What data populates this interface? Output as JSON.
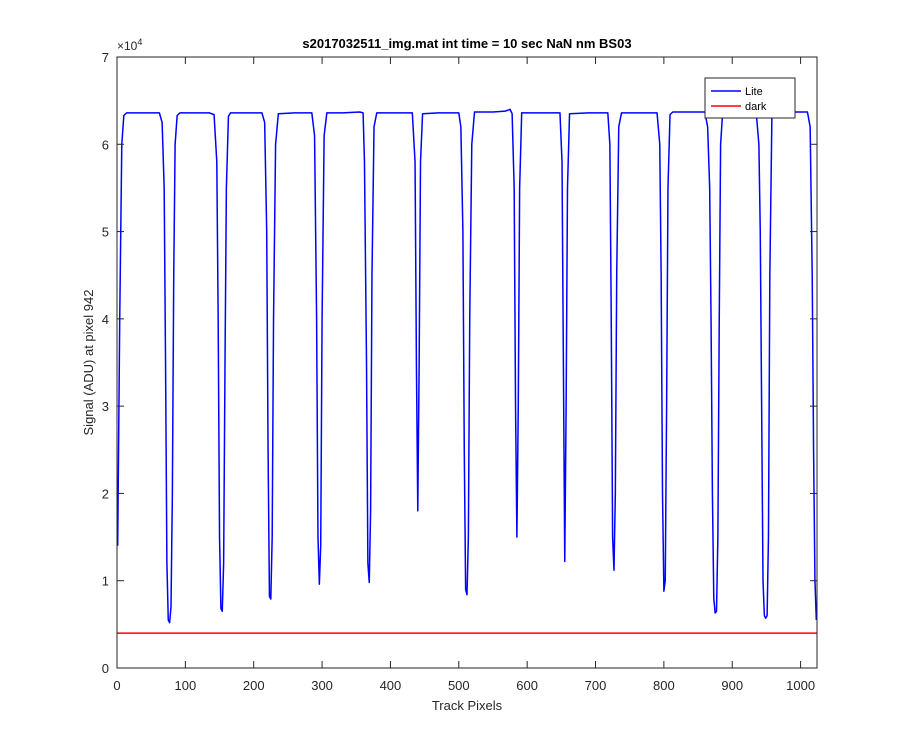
{
  "chart_data": {
    "type": "line",
    "title": "s2017032511_img.mat int time = 10 sec  NaN nm BS03",
    "xlabel": "Track Pixels",
    "ylabel": "Signal (ADU) at pixel 942",
    "xlim": [
      0,
      1024
    ],
    "ylim": [
      0,
      70000
    ],
    "y_exponent_label": "×10",
    "y_exponent_power": "4",
    "x_ticks": [
      0,
      100,
      200,
      300,
      400,
      500,
      600,
      700,
      800,
      900,
      1000
    ],
    "x_tick_labels": [
      "0",
      "100",
      "200",
      "300",
      "400",
      "500",
      "600",
      "700",
      "800",
      "900",
      "1000"
    ],
    "y_ticks": [
      0,
      10000,
      20000,
      30000,
      40000,
      50000,
      60000,
      70000
    ],
    "y_tick_labels": [
      "0",
      "1",
      "2",
      "3",
      "4",
      "5",
      "6",
      "7"
    ],
    "grid": false,
    "legend_position": "top-right",
    "series": [
      {
        "name": "Lite",
        "color": "#0000ff",
        "points": [
          [
            1,
            14000
          ],
          [
            4,
            40000
          ],
          [
            7,
            60000
          ],
          [
            10,
            63300
          ],
          [
            14,
            63600
          ],
          [
            30,
            63600
          ],
          [
            50,
            63600
          ],
          [
            62,
            63600
          ],
          [
            66,
            62500
          ],
          [
            69,
            55000
          ],
          [
            71,
            35000
          ],
          [
            73,
            12000
          ],
          [
            75,
            5500
          ],
          [
            77,
            5200
          ],
          [
            79,
            7000
          ],
          [
            81,
            20000
          ],
          [
            83,
            45000
          ],
          [
            85,
            60000
          ],
          [
            88,
            63300
          ],
          [
            92,
            63600
          ],
          [
            110,
            63600
          ],
          [
            135,
            63600
          ],
          [
            142,
            63400
          ],
          [
            146,
            58000
          ],
          [
            148,
            40000
          ],
          [
            150,
            15000
          ],
          [
            152,
            6800
          ],
          [
            154,
            6500
          ],
          [
            156,
            12000
          ],
          [
            158,
            35000
          ],
          [
            160,
            55000
          ],
          [
            163,
            63200
          ],
          [
            166,
            63600
          ],
          [
            190,
            63600
          ],
          [
            212,
            63600
          ],
          [
            216,
            62500
          ],
          [
            219,
            50000
          ],
          [
            221,
            25000
          ],
          [
            223,
            8200
          ],
          [
            225,
            7900
          ],
          [
            227,
            15000
          ],
          [
            229,
            40000
          ],
          [
            232,
            60000
          ],
          [
            236,
            63500
          ],
          [
            260,
            63600
          ],
          [
            285,
            63600
          ],
          [
            289,
            61000
          ],
          [
            292,
            40000
          ],
          [
            294,
            15000
          ],
          [
            296,
            9600
          ],
          [
            298,
            14000
          ],
          [
            300,
            40000
          ],
          [
            303,
            61000
          ],
          [
            307,
            63600
          ],
          [
            330,
            63600
          ],
          [
            355,
            63700
          ],
          [
            360,
            63600
          ],
          [
            362,
            58000
          ],
          [
            365,
            35000
          ],
          [
            367,
            12000
          ],
          [
            369,
            9800
          ],
          [
            371,
            18000
          ],
          [
            373,
            45000
          ],
          [
            376,
            62000
          ],
          [
            380,
            63600
          ],
          [
            410,
            63600
          ],
          [
            432,
            63600
          ],
          [
            436,
            58000
          ],
          [
            438,
            35000
          ],
          [
            440,
            18000
          ],
          [
            442,
            35000
          ],
          [
            444,
            58000
          ],
          [
            447,
            63500
          ],
          [
            470,
            63600
          ],
          [
            500,
            63600
          ],
          [
            503,
            62000
          ],
          [
            506,
            50000
          ],
          [
            508,
            25000
          ],
          [
            510,
            9000
          ],
          [
            512,
            8400
          ],
          [
            514,
            15000
          ],
          [
            516,
            40000
          ],
          [
            519,
            60000
          ],
          [
            523,
            63700
          ],
          [
            550,
            63700
          ],
          [
            568,
            63800
          ],
          [
            575,
            64000
          ],
          [
            578,
            63500
          ],
          [
            581,
            55000
          ],
          [
            583,
            30000
          ],
          [
            585,
            15000
          ],
          [
            587,
            30000
          ],
          [
            589,
            55000
          ],
          [
            592,
            63600
          ],
          [
            620,
            63600
          ],
          [
            648,
            63600
          ],
          [
            651,
            58000
          ],
          [
            653,
            35000
          ],
          [
            655,
            12200
          ],
          [
            657,
            30000
          ],
          [
            659,
            55000
          ],
          [
            662,
            63500
          ],
          [
            690,
            63600
          ],
          [
            718,
            63600
          ],
          [
            721,
            60000
          ],
          [
            723,
            40000
          ],
          [
            725,
            15000
          ],
          [
            727,
            11200
          ],
          [
            729,
            20000
          ],
          [
            731,
            45000
          ],
          [
            734,
            62000
          ],
          [
            738,
            63600
          ],
          [
            770,
            63600
          ],
          [
            790,
            63600
          ],
          [
            794,
            60000
          ],
          [
            796,
            45000
          ],
          [
            798,
            20000
          ],
          [
            800,
            8800
          ],
          [
            802,
            10000
          ],
          [
            804,
            30000
          ],
          [
            806,
            55000
          ],
          [
            809,
            63400
          ],
          [
            813,
            63700
          ],
          [
            840,
            63700
          ],
          [
            860,
            63700
          ],
          [
            864,
            62000
          ],
          [
            867,
            55000
          ],
          [
            869,
            40000
          ],
          [
            871,
            20000
          ],
          [
            873,
            8000
          ],
          [
            875,
            6300
          ],
          [
            877,
            6500
          ],
          [
            879,
            15000
          ],
          [
            881,
            40000
          ],
          [
            883,
            60000
          ],
          [
            886,
            63700
          ],
          [
            910,
            63800
          ],
          [
            935,
            63700
          ],
          [
            939,
            60000
          ],
          [
            941,
            50000
          ],
          [
            943,
            30000
          ],
          [
            945,
            10000
          ],
          [
            947,
            6000
          ],
          [
            949,
            5700
          ],
          [
            951,
            6000
          ],
          [
            953,
            15000
          ],
          [
            955,
            45000
          ],
          [
            958,
            63000
          ],
          [
            962,
            63700
          ],
          [
            990,
            63700
          ],
          [
            1010,
            63700
          ],
          [
            1014,
            62000
          ],
          [
            1017,
            45000
          ],
          [
            1019,
            25000
          ],
          [
            1021,
            10000
          ],
          [
            1023,
            5500
          ]
        ]
      },
      {
        "name": "dark",
        "color": "#ff0000",
        "points": [
          [
            0,
            4000
          ],
          [
            1024,
            4000
          ]
        ]
      }
    ]
  }
}
